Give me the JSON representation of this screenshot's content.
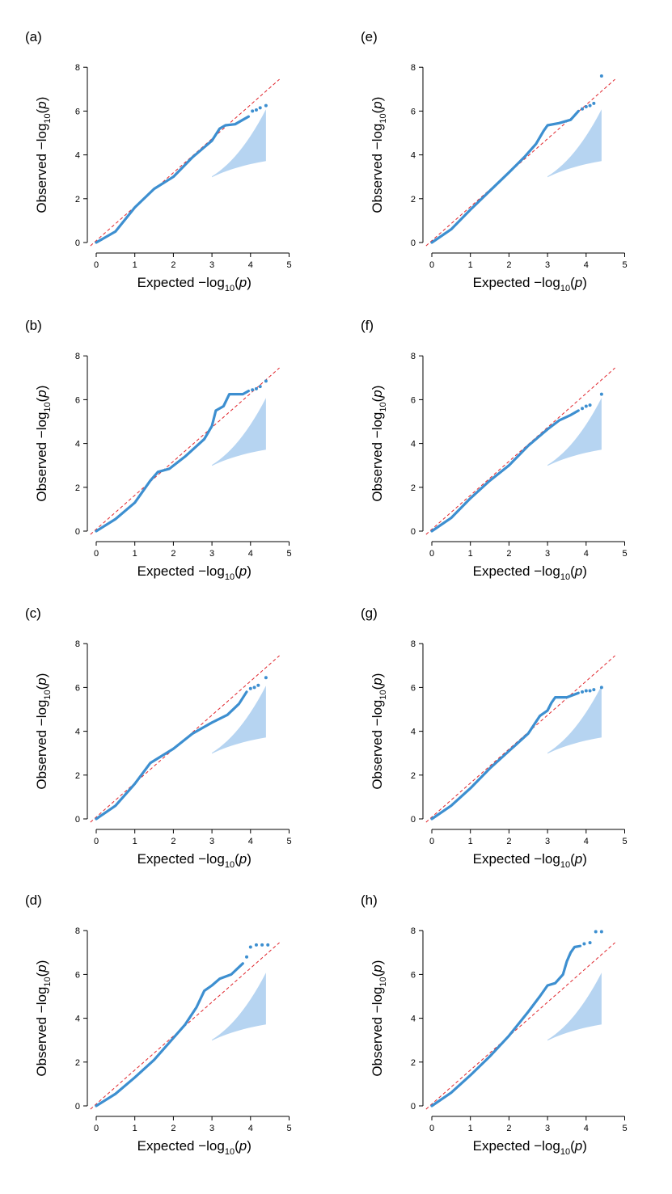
{
  "chart_data": [
    {
      "panel": "(a)",
      "type": "scatter",
      "xlabel": "Expected −log10(p)",
      "ylabel": "Observed −log10(p)",
      "xlim": [
        0,
        5
      ],
      "ylim": [
        0,
        8
      ],
      "xticks": [
        0,
        1,
        2,
        3,
        4,
        5
      ],
      "yticks": [
        0,
        2,
        4,
        6,
        8
      ],
      "reference_line": "y = x",
      "confidence_band": true,
      "curve": [
        [
          0,
          0
        ],
        [
          0.5,
          0.5
        ],
        [
          1,
          1.6
        ],
        [
          1.5,
          2.45
        ],
        [
          2,
          3.0
        ],
        [
          2.5,
          3.9
        ],
        [
          3.0,
          4.65
        ],
        [
          3.2,
          5.2
        ],
        [
          3.35,
          5.35
        ],
        [
          3.6,
          5.4
        ],
        [
          3.8,
          5.6
        ],
        [
          3.95,
          5.75
        ]
      ],
      "tail_points": [
        [
          4.05,
          6.0
        ],
        [
          4.15,
          6.05
        ],
        [
          4.25,
          6.15
        ],
        [
          4.4,
          6.25
        ]
      ]
    },
    {
      "panel": "(b)",
      "type": "scatter",
      "xlabel": "Expected −log10(p)",
      "ylabel": "Observed −log10(p)",
      "xlim": [
        0,
        5
      ],
      "ylim": [
        0,
        8
      ],
      "xticks": [
        0,
        1,
        2,
        3,
        4,
        5
      ],
      "yticks": [
        0,
        2,
        4,
        6,
        8
      ],
      "reference_line": "y = x",
      "confidence_band": true,
      "curve": [
        [
          0,
          0
        ],
        [
          0.5,
          0.55
        ],
        [
          1,
          1.3
        ],
        [
          1.4,
          2.3
        ],
        [
          1.6,
          2.7
        ],
        [
          1.9,
          2.85
        ],
        [
          2.3,
          3.4
        ],
        [
          2.8,
          4.2
        ],
        [
          3.0,
          4.8
        ],
        [
          3.1,
          5.5
        ],
        [
          3.3,
          5.7
        ],
        [
          3.45,
          6.25
        ],
        [
          3.8,
          6.25
        ],
        [
          3.95,
          6.4
        ]
      ],
      "tail_points": [
        [
          4.05,
          6.45
        ],
        [
          4.15,
          6.5
        ],
        [
          4.25,
          6.6
        ],
        [
          4.4,
          6.85
        ]
      ]
    },
    {
      "panel": "(c)",
      "type": "scatter",
      "xlabel": "Expected −log10(p)",
      "ylabel": "Observed −log10(p)",
      "xlim": [
        0,
        5
      ],
      "ylim": [
        0,
        8
      ],
      "xticks": [
        0,
        1,
        2,
        3,
        4,
        5
      ],
      "yticks": [
        0,
        2,
        4,
        6,
        8
      ],
      "reference_line": "y = x",
      "confidence_band": true,
      "curve": [
        [
          0,
          0
        ],
        [
          0.5,
          0.6
        ],
        [
          1,
          1.6
        ],
        [
          1.4,
          2.55
        ],
        [
          2,
          3.2
        ],
        [
          2.5,
          3.9
        ],
        [
          3,
          4.4
        ],
        [
          3.4,
          4.75
        ],
        [
          3.7,
          5.25
        ],
        [
          3.9,
          5.8
        ]
      ],
      "tail_points": [
        [
          4.0,
          5.95
        ],
        [
          4.1,
          6.0
        ],
        [
          4.2,
          6.1
        ],
        [
          4.4,
          6.45
        ]
      ]
    },
    {
      "panel": "(d)",
      "type": "scatter",
      "xlabel": "Expected −log10(p)",
      "ylabel": "Observed −log10(p)",
      "xlim": [
        0,
        5
      ],
      "ylim": [
        0,
        8
      ],
      "xticks": [
        0,
        1,
        2,
        3,
        4,
        5
      ],
      "yticks": [
        0,
        2,
        4,
        6,
        8
      ],
      "reference_line": "y = x",
      "confidence_band": true,
      "curve": [
        [
          0,
          0
        ],
        [
          0.5,
          0.55
        ],
        [
          1,
          1.3
        ],
        [
          1.5,
          2.1
        ],
        [
          2,
          3.1
        ],
        [
          2.3,
          3.7
        ],
        [
          2.6,
          4.5
        ],
        [
          2.8,
          5.25
        ],
        [
          3,
          5.5
        ],
        [
          3.2,
          5.8
        ],
        [
          3.5,
          6.0
        ],
        [
          3.8,
          6.5
        ]
      ],
      "tail_points": [
        [
          3.9,
          6.8
        ],
        [
          4.0,
          7.25
        ],
        [
          4.15,
          7.35
        ],
        [
          4.3,
          7.35
        ],
        [
          4.45,
          7.35
        ]
      ]
    },
    {
      "panel": "(e)",
      "type": "scatter",
      "xlabel": "Expected −log10(p)",
      "ylabel": "Observed −log10(p)",
      "xlim": [
        0,
        5
      ],
      "ylim": [
        0,
        8
      ],
      "xticks": [
        0,
        1,
        2,
        3,
        4,
        5
      ],
      "yticks": [
        0,
        2,
        4,
        6,
        8
      ],
      "reference_line": "y = x",
      "confidence_band": true,
      "curve": [
        [
          0,
          0
        ],
        [
          0.5,
          0.6
        ],
        [
          1,
          1.5
        ],
        [
          1.5,
          2.35
        ],
        [
          2,
          3.2
        ],
        [
          2.4,
          3.9
        ],
        [
          2.7,
          4.5
        ],
        [
          2.9,
          5.1
        ],
        [
          3.0,
          5.35
        ],
        [
          3.3,
          5.45
        ],
        [
          3.6,
          5.6
        ],
        [
          3.8,
          6.0
        ]
      ],
      "tail_points": [
        [
          3.9,
          6.1
        ],
        [
          4.0,
          6.2
        ],
        [
          4.1,
          6.25
        ],
        [
          4.2,
          6.35
        ],
        [
          4.4,
          7.6
        ]
      ]
    },
    {
      "panel": "(f)",
      "type": "scatter",
      "xlabel": "Expected −log10(p)",
      "ylabel": "Observed −log10(p)",
      "xlim": [
        0,
        5
      ],
      "ylim": [
        0,
        8
      ],
      "xticks": [
        0,
        1,
        2,
        3,
        4,
        5
      ],
      "yticks": [
        0,
        2,
        4,
        6,
        8
      ],
      "reference_line": "y = x",
      "confidence_band": true,
      "curve": [
        [
          0,
          0
        ],
        [
          0.5,
          0.6
        ],
        [
          1,
          1.5
        ],
        [
          1.5,
          2.3
        ],
        [
          2,
          3.0
        ],
        [
          2.5,
          3.9
        ],
        [
          3,
          4.65
        ],
        [
          3.3,
          5.05
        ],
        [
          3.6,
          5.3
        ],
        [
          3.8,
          5.5
        ]
      ],
      "tail_points": [
        [
          3.9,
          5.6
        ],
        [
          4.0,
          5.7
        ],
        [
          4.1,
          5.75
        ],
        [
          4.4,
          6.25
        ]
      ]
    },
    {
      "panel": "(g)",
      "type": "scatter",
      "xlabel": "Expected −log10(p)",
      "ylabel": "Observed −log10(p)",
      "xlim": [
        0,
        5
      ],
      "ylim": [
        0,
        8
      ],
      "xticks": [
        0,
        1,
        2,
        3,
        4,
        5
      ],
      "yticks": [
        0,
        2,
        4,
        6,
        8
      ],
      "reference_line": "y = x",
      "confidence_band": true,
      "curve": [
        [
          0,
          0
        ],
        [
          0.5,
          0.6
        ],
        [
          1,
          1.4
        ],
        [
          1.5,
          2.3
        ],
        [
          2,
          3.1
        ],
        [
          2.5,
          3.9
        ],
        [
          2.8,
          4.7
        ],
        [
          3.0,
          4.95
        ],
        [
          3.1,
          5.3
        ],
        [
          3.2,
          5.55
        ],
        [
          3.5,
          5.55
        ],
        [
          3.8,
          5.75
        ]
      ],
      "tail_points": [
        [
          3.9,
          5.8
        ],
        [
          4.0,
          5.85
        ],
        [
          4.1,
          5.85
        ],
        [
          4.2,
          5.9
        ],
        [
          4.4,
          6.0
        ]
      ]
    },
    {
      "panel": "(h)",
      "type": "scatter",
      "xlabel": "Expected −log10(p)",
      "ylabel": "Observed −log10(p)",
      "xlim": [
        0,
        5
      ],
      "ylim": [
        0,
        8
      ],
      "xticks": [
        0,
        1,
        2,
        3,
        4,
        5
      ],
      "yticks": [
        0,
        2,
        4,
        6,
        8
      ],
      "reference_line": "y = x",
      "confidence_band": true,
      "curve": [
        [
          0,
          0
        ],
        [
          0.5,
          0.6
        ],
        [
          1,
          1.4
        ],
        [
          1.5,
          2.25
        ],
        [
          2,
          3.2
        ],
        [
          2.5,
          4.3
        ],
        [
          2.8,
          5.0
        ],
        [
          3.0,
          5.5
        ],
        [
          3.2,
          5.6
        ],
        [
          3.4,
          6.0
        ],
        [
          3.5,
          6.6
        ],
        [
          3.6,
          7.0
        ],
        [
          3.7,
          7.25
        ],
        [
          3.85,
          7.3
        ]
      ],
      "tail_points": [
        [
          3.95,
          7.4
        ],
        [
          4.1,
          7.45
        ],
        [
          4.25,
          7.95
        ],
        [
          4.4,
          7.95
        ]
      ]
    }
  ]
}
